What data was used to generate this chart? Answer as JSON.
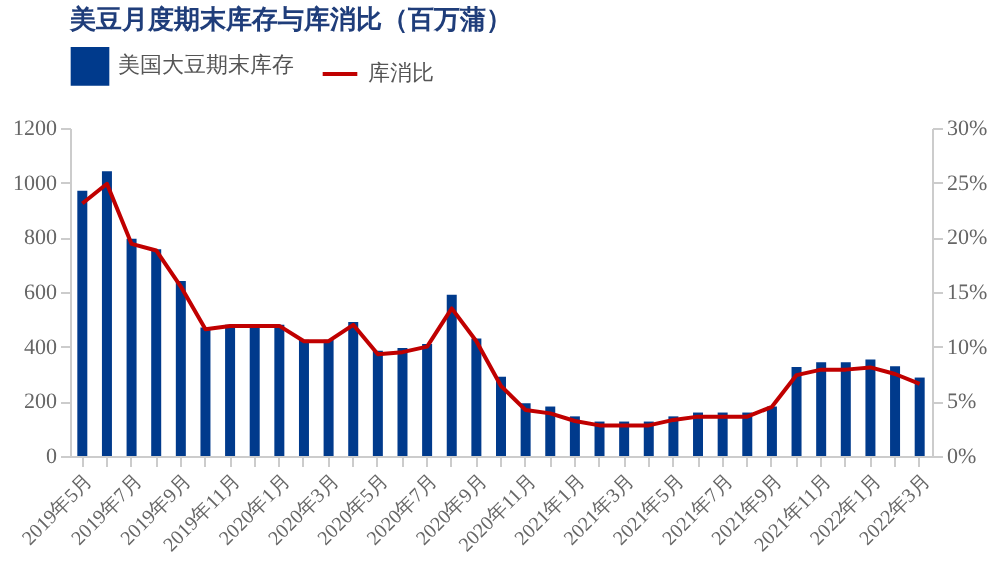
{
  "chart_data": {
    "type": "bar",
    "title": "美豆月度期末库存与库消比（百万蒲）",
    "categories": [
      "2019年5月",
      null,
      "2019年7月",
      null,
      "2019年9月",
      null,
      "2019年11月",
      null,
      "2020年1月",
      null,
      "2020年3月",
      null,
      "2020年5月",
      null,
      "2020年7月",
      null,
      "2020年9月",
      null,
      "2020年11月",
      null,
      "2021年1月",
      null,
      "2021年3月",
      null,
      "2021年5月",
      null,
      "2021年7月",
      null,
      "2021年9月",
      null,
      "2021年11月",
      null,
      "2022年1月",
      null,
      "2022年3月"
    ],
    "series": [
      {
        "name": "美国大豆期末库存",
        "color": "#003a8c",
        "values": [
          970,
          1042,
          795,
          756,
          640,
          470,
          480,
          480,
          480,
          425,
          425,
          490,
          385,
          395,
          410,
          590,
          430,
          290,
          193,
          181,
          145,
          126,
          126,
          126,
          145,
          159,
          159,
          159,
          181,
          326,
          343,
          343,
          353,
          328,
          287
        ]
      },
      {
        "name": "库消比",
        "type": "line",
        "axis": "y2",
        "color": "#c00000",
        "values": [
          23.1,
          24.9,
          19.4,
          18.8,
          15.5,
          11.6,
          11.9,
          11.9,
          11.9,
          10.5,
          10.5,
          12.0,
          9.3,
          9.5,
          10.0,
          13.5,
          10.5,
          6.4,
          4.2,
          3.9,
          3.2,
          2.8,
          2.8,
          2.8,
          3.3,
          3.6,
          3.6,
          3.6,
          4.5,
          7.4,
          7.9,
          7.9,
          8.1,
          7.5,
          6.6
        ]
      }
    ],
    "ylim": [
      0,
      1200
    ],
    "yticks": [
      0,
      200,
      400,
      600,
      800,
      1000,
      1200
    ],
    "y2lim": [
      0,
      30
    ],
    "y2ticks": [
      {
        "value": 0,
        "label": "0%"
      },
      {
        "value": 5,
        "label": "5%"
      },
      {
        "value": 10,
        "label": "10%"
      },
      {
        "value": 15,
        "label": "15%"
      },
      {
        "value": 20,
        "label": "20%"
      },
      {
        "value": 25,
        "label": "25%"
      },
      {
        "value": 30,
        "label": "30%"
      }
    ],
    "legend": "top",
    "grid": false
  }
}
